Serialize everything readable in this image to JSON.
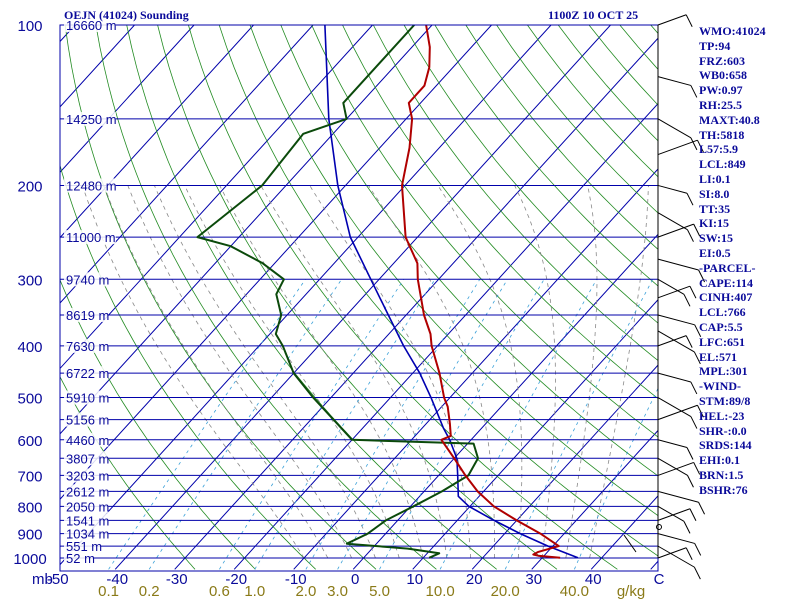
{
  "header": {
    "station": "OEJN (41024) Sounding",
    "time": "1100Z 10 OCT 25"
  },
  "indices": [
    "WMO:41024",
    "TP:94",
    "FRZ:603",
    "WB0:658",
    "PW:0.97",
    "RH:25.5",
    "MAXT:40.8",
    "TH:5818",
    "L57:5.9",
    "LCL:849",
    "LI:0.1",
    "SI:8.0",
    "TT:35",
    "KI:15",
    "SW:15",
    "EI:0.5",
    "-PARCEL-",
    "CAPE:114",
    "CINH:407",
    "LCL:766",
    "CAP:5.5",
    "LFC:651",
    "EL:571",
    "MPL:301",
    "-WIND-",
    "STM:89/8",
    "HEL:-23",
    "SHR-:0.0",
    "SRDS:144",
    "EHI:0.1",
    "BRN:1.5",
    "BSHR:76"
  ],
  "colors": {
    "isobar": "#0000aa",
    "isotherm": "#0000aa",
    "dry_adiabat": "#228b22",
    "moist_adiabat": "#888888",
    "mixing_ratio": "#3aa0d8",
    "temperature": "#b00000",
    "dewpoint": "#0b4a0b",
    "parcel": "#0000b0",
    "text": "#0a0a9a",
    "mixing_label": "#8a7a18"
  },
  "chart_data": {
    "type": "line",
    "diagram": "skew-t log-p",
    "pressure_levels": [
      100,
      200,
      300,
      400,
      500,
      600,
      700,
      800,
      900,
      1000
    ],
    "pressure_labels": [
      "100",
      "200",
      "300",
      "400",
      "500",
      "600",
      "700",
      "800",
      "900",
      "1000"
    ],
    "pressure_unit": "mb",
    "temperature_ticks": [
      -50,
      -40,
      -30,
      -20,
      -10,
      0,
      10,
      20,
      30,
      40
    ],
    "temperature_labels": [
      "-50",
      "-40",
      "-30",
      "-20",
      "-10",
      "0",
      "10",
      "20",
      "30",
      "40"
    ],
    "temperature_unit": "C",
    "xlim": [
      -50,
      50
    ],
    "ylim": [
      1000,
      100
    ],
    "mixing_ratio_labels": [
      {
        "w": 0.1,
        "text": "0.1"
      },
      {
        "w": 0.2,
        "text": "0.2"
      },
      {
        "w": 0.6,
        "text": "0.6"
      },
      {
        "w": 1.0,
        "text": "1.0"
      },
      {
        "w": 2.0,
        "text": "2.0"
      },
      {
        "w": 3.0,
        "text": "3.0"
      },
      {
        "w": 5.0,
        "text": "5.0"
      },
      {
        "w": 10.0,
        "text": "10.0"
      },
      {
        "w": 20.0,
        "text": "20.0"
      },
      {
        "w": 40.0,
        "text": "40.0"
      }
    ],
    "mixing_ratio_unit": "g/kg",
    "height_labels": [
      {
        "p": 100,
        "text": "16660 m"
      },
      {
        "p": 150,
        "text": "14250 m"
      },
      {
        "p": 200,
        "text": "12480 m"
      },
      {
        "p": 250,
        "text": "11000 m"
      },
      {
        "p": 300,
        "text": "9740 m"
      },
      {
        "p": 350,
        "text": "8619 m"
      },
      {
        "p": 400,
        "text": "7630 m"
      },
      {
        "p": 450,
        "text": "6722 m"
      },
      {
        "p": 500,
        "text": "5910 m"
      },
      {
        "p": 550,
        "text": "5156 m"
      },
      {
        "p": 600,
        "text": "4460 m"
      },
      {
        "p": 650,
        "text": "3807 m"
      },
      {
        "p": 700,
        "text": "3203 m"
      },
      {
        "p": 750,
        "text": "2612 m"
      },
      {
        "p": 800,
        "text": "2050 m"
      },
      {
        "p": 850,
        "text": "1541 m"
      },
      {
        "p": 900,
        "text": "1034 m"
      },
      {
        "p": 950,
        "text": "551 m"
      },
      {
        "p": 1000,
        "text": "52 m"
      }
    ],
    "temperature_profile": [
      [
        999,
        33
      ],
      [
        990,
        29
      ],
      [
        985,
        28
      ],
      [
        975,
        28.4
      ],
      [
        950,
        31
      ],
      [
        900,
        26
      ],
      [
        850,
        20
      ],
      [
        800,
        14
      ],
      [
        750,
        9
      ],
      [
        700,
        4.5
      ],
      [
        650,
        0
      ],
      [
        600,
        -5
      ],
      [
        590,
        -4
      ],
      [
        560,
        -6
      ],
      [
        520,
        -9
      ],
      [
        500,
        -11
      ],
      [
        450,
        -15.5
      ],
      [
        400,
        -21
      ],
      [
        380,
        -23
      ],
      [
        350,
        -27
      ],
      [
        300,
        -33.5
      ],
      [
        280,
        -36
      ],
      [
        250,
        -42
      ],
      [
        200,
        -50.5
      ],
      [
        170,
        -55
      ],
      [
        150,
        -59
      ],
      [
        140,
        -62
      ],
      [
        130,
        -62
      ],
      [
        120,
        -64
      ],
      [
        110,
        -67
      ],
      [
        100,
        -71
      ]
    ],
    "dewpoint_profile": [
      [
        999,
        11
      ],
      [
        980,
        12
      ],
      [
        960,
        6
      ],
      [
        940,
        -5
      ],
      [
        900,
        -3
      ],
      [
        850,
        -2
      ],
      [
        800,
        0.5
      ],
      [
        750,
        3
      ],
      [
        700,
        5
      ],
      [
        650,
        4
      ],
      [
        610,
        1
      ],
      [
        600,
        -20
      ],
      [
        500,
        -33
      ],
      [
        450,
        -40
      ],
      [
        400,
        -46
      ],
      [
        380,
        -49
      ],
      [
        350,
        -51
      ],
      [
        320,
        -55
      ],
      [
        300,
        -56
      ],
      [
        280,
        -62
      ],
      [
        260,
        -70
      ],
      [
        250,
        -77
      ],
      [
        200,
        -74
      ],
      [
        160,
        -75
      ],
      [
        150,
        -70
      ],
      [
        140,
        -73
      ],
      [
        100,
        -73
      ]
    ],
    "parcel_path": [
      [
        999,
        36
      ],
      [
        950,
        29.2
      ],
      [
        900,
        22.6
      ],
      [
        850,
        16.2
      ],
      [
        800,
        9.8
      ],
      [
        766,
        6.5
      ],
      [
        700,
        3.2
      ],
      [
        651,
        0.5
      ],
      [
        600,
        -3.6
      ],
      [
        571,
        -6.4
      ],
      [
        500,
        -13.2
      ],
      [
        450,
        -18.8
      ],
      [
        400,
        -25.7
      ],
      [
        350,
        -33
      ],
      [
        300,
        -41.4
      ],
      [
        250,
        -51.3
      ],
      [
        200,
        -61.3
      ],
      [
        150,
        -73
      ],
      [
        100,
        -88
      ]
    ],
    "wind_barbs_note": "wind barbs along right edge"
  }
}
